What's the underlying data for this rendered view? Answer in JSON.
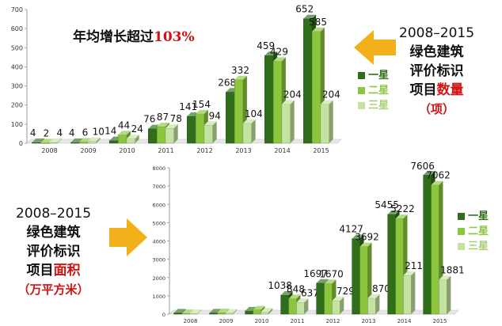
{
  "colors": {
    "star1": "#2f6e1b",
    "star2": "#8cc63f",
    "star3": "#c4e3a0",
    "highlight": "#d01414",
    "arrow": "#f2b11b"
  },
  "chart_data": [
    {
      "type": "bar",
      "categories": [
        "2008",
        "2009",
        "2010",
        "2011",
        "2012",
        "2013",
        "2014",
        "2015"
      ],
      "series": [
        {
          "name": "一星",
          "values": [
            4,
            4,
            14,
            76,
            141,
            268,
            459,
            652
          ]
        },
        {
          "name": "二星",
          "values": [
            2,
            6,
            44,
            87,
            154,
            332,
            429,
            585
          ]
        },
        {
          "name": "三星",
          "values": [
            4,
            10,
            24,
            78,
            94,
            104,
            204,
            204
          ]
        }
      ],
      "yticks": [
        "0",
        "100",
        "200",
        "300",
        "400",
        "500",
        "600",
        "700"
      ],
      "ylim": [
        0,
        700
      ],
      "headline": "年均增长超过",
      "headline_pct": "103%",
      "side_year": "2008–2015",
      "side_line1": "绿色建筑",
      "side_line2": "评价标识",
      "side_line3a": "项目",
      "side_line3b": "数量",
      "side_unit": "（项）",
      "legend_position": "right",
      "grid": false
    },
    {
      "type": "bar",
      "categories": [
        "2008",
        "2009",
        "2010",
        "2011",
        "2012",
        "2013",
        "2014",
        "2015"
      ],
      "series": [
        {
          "name": "一星",
          "values": [
            null,
            null,
            null,
            1038,
            1697,
            4127,
            5455,
            7606
          ]
        },
        {
          "name": "二星",
          "values": [
            null,
            null,
            null,
            848,
            1670,
            3692,
            5222,
            7062
          ]
        },
        {
          "name": "三星",
          "values": [
            null,
            null,
            null,
            637,
            729,
            870,
            2119,
            1881
          ]
        }
      ],
      "approx_small": [
        [
          70,
          40,
          40
        ],
        [
          70,
          80,
          60
        ],
        [
          180,
          230,
          120
        ]
      ],
      "yticks": [
        "0",
        "1000",
        "2000",
        "3000",
        "4000",
        "5000",
        "6000",
        "7000",
        "8000"
      ],
      "ylim": [
        0,
        8000
      ],
      "side_year": "2008–2015",
      "side_line1": "绿色建筑",
      "side_line2": "评价标识",
      "side_line3a": "项目",
      "side_line3b": "面积",
      "side_unit": "（万平方米）",
      "legend_position": "right",
      "grid": false
    }
  ]
}
